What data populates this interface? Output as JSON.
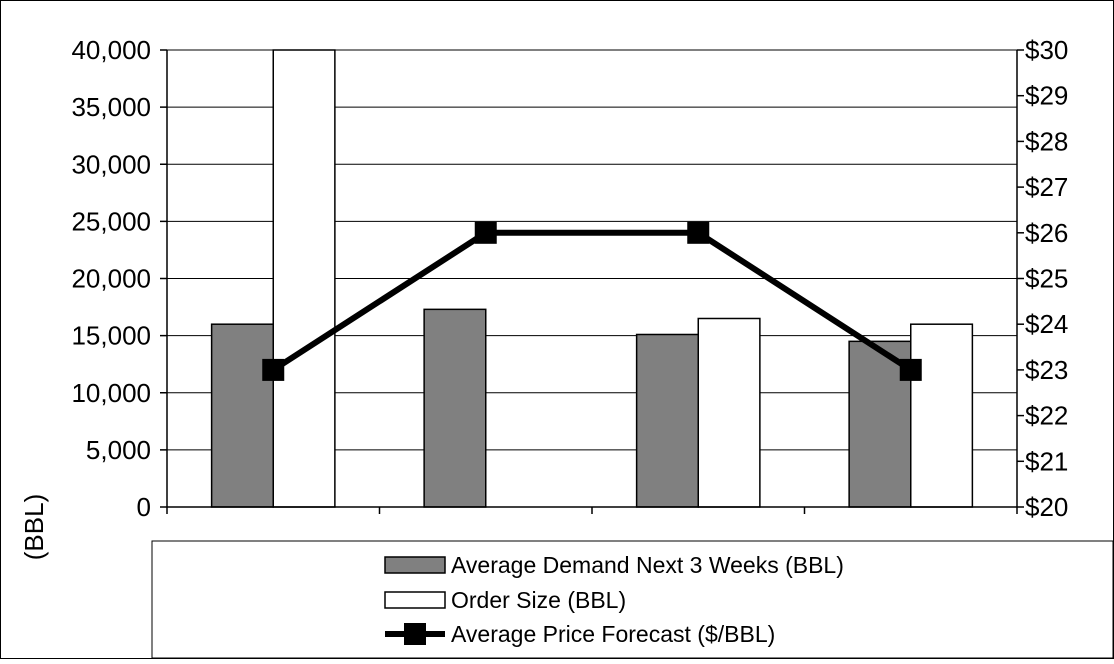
{
  "chart_data": {
    "type": "bar",
    "categories": [
      "",
      "",
      "",
      ""
    ],
    "series": [
      {
        "name": "Average Demand Next 3 Weeks (BBL)",
        "kind": "bar",
        "axis": "left",
        "color": "#808080",
        "values": [
          16000,
          17300,
          15100,
          14500
        ]
      },
      {
        "name": "Order Size (BBL)",
        "kind": "bar",
        "axis": "left",
        "color": "#ffffff",
        "values": [
          40000,
          null,
          16500,
          16000
        ]
      },
      {
        "name": "Average Price Forecast ($/BBL)",
        "kind": "line",
        "axis": "right",
        "color": "#000000",
        "marker": "square",
        "values": [
          23,
          26,
          26,
          23
        ]
      }
    ],
    "y_left": {
      "label": "(BBL)",
      "min": 0,
      "max": 40000,
      "ticks": [
        "0",
        "5,000",
        "10,000",
        "15,000",
        "20,000",
        "25,000",
        "30,000",
        "35,000",
        "40,000"
      ]
    },
    "y_right": {
      "label": "",
      "min": 20,
      "max": 30,
      "ticks": [
        "$20",
        "$21",
        "$22",
        "$23",
        "$24",
        "$25",
        "$26",
        "$27",
        "$28",
        "$29",
        "$30"
      ]
    },
    "grid": true,
    "legend_position": "bottom"
  }
}
